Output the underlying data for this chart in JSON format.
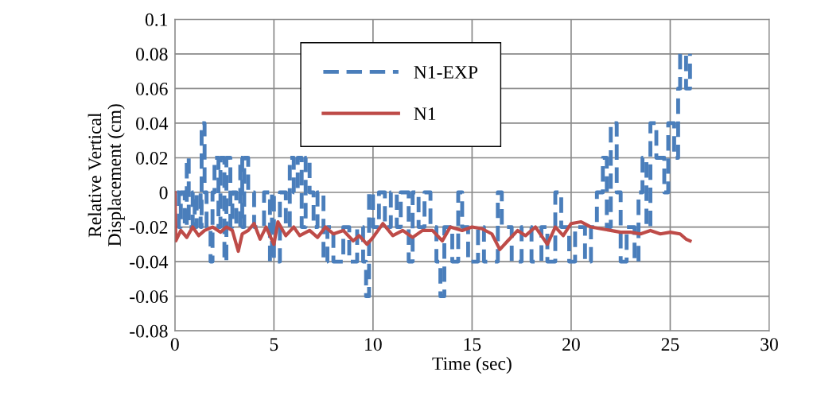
{
  "chart_data": {
    "type": "line",
    "xlabel": "Time (sec)",
    "ylabel": "Relative Vertical\nDisplacement (cm)",
    "xlim": [
      0,
      30
    ],
    "xticks": [
      0,
      5,
      10,
      15,
      20,
      25,
      30
    ],
    "ylim": [
      -0.08,
      0.1
    ],
    "yticks": [
      -0.08,
      -0.06,
      -0.04,
      -0.02,
      0,
      0.02,
      0.04,
      0.06,
      0.08,
      0.1
    ],
    "grid": true,
    "legend": "top",
    "series": [
      {
        "name": "N1-EXP",
        "type": "step",
        "color": "#4a7ebb",
        "line_style": "dashed",
        "x": [
          0.1,
          0.2,
          0.3,
          0.5,
          0.6,
          0.7,
          0.9,
          1.0,
          1.1,
          1.3,
          1.35,
          1.5,
          1.6,
          1.8,
          1.9,
          2.0,
          2.2,
          2.3,
          2.5,
          2.6,
          2.8,
          2.9,
          3.1,
          3.3,
          3.4,
          3.5,
          3.7,
          4.0,
          4.5,
          4.8,
          4.9,
          5.0,
          5.3,
          5.6,
          5.8,
          6.0,
          6.2,
          6.4,
          6.6,
          6.8,
          7.0,
          7.2,
          7.5,
          7.7,
          8.0,
          8.5,
          8.8,
          9.2,
          9.5,
          9.65,
          9.8,
          10.0,
          10.3,
          10.6,
          10.9,
          11.2,
          11.4,
          11.8,
          12.0,
          12.3,
          12.6,
          12.9,
          13.2,
          13.4,
          13.6,
          14.0,
          14.3,
          14.5,
          14.8,
          15.3,
          15.6,
          16.3,
          16.5,
          17.0,
          17.5,
          18.0,
          18.5,
          18.8,
          19.2,
          19.5,
          19.9,
          20.2,
          20.7,
          21.0,
          21.3,
          21.6,
          21.8,
          22.0,
          22.3,
          22.5,
          22.8,
          23.2,
          23.4,
          23.6,
          23.8,
          24.0,
          24.3,
          24.7,
          24.9,
          25.2,
          25.4,
          25.5,
          25.8,
          26.0
        ],
        "values": [
          0,
          -0.02,
          0,
          -0.02,
          0.02,
          -0.02,
          0,
          -0.02,
          0,
          -0.02,
          0.04,
          0,
          -0.02,
          -0.04,
          0,
          0.02,
          -0.02,
          0.02,
          -0.04,
          0.02,
          -0.02,
          0,
          -0.02,
          0.02,
          -0.02,
          0.02,
          0,
          -0.02,
          0,
          -0.04,
          0,
          -0.04,
          0,
          -0.02,
          0.02,
          0,
          0.02,
          -0.02,
          0.02,
          0,
          -0.02,
          0,
          -0.04,
          -0.02,
          -0.04,
          -0.02,
          -0.04,
          -0.02,
          -0.04,
          -0.06,
          0,
          -0.02,
          0,
          -0.02,
          0,
          -0.02,
          0,
          -0.04,
          0,
          -0.02,
          0,
          -0.02,
          -0.04,
          -0.06,
          -0.02,
          -0.04,
          0,
          -0.02,
          -0.04,
          -0.02,
          -0.04,
          0,
          -0.02,
          -0.04,
          -0.02,
          -0.04,
          -0.02,
          -0.04,
          0,
          -0.02,
          -0.04,
          -0.02,
          -0.04,
          -0.02,
          0,
          0.02,
          -0.02,
          0.04,
          0,
          -0.04,
          -0.02,
          -0.04,
          0,
          0.02,
          -0.02,
          0.04,
          0.02,
          0,
          0.04,
          0.02,
          0.06,
          0.08,
          0.06,
          0.08
        ]
      },
      {
        "name": "N1",
        "color": "#be4b48",
        "line_style": "solid",
        "x": [
          0,
          0.05,
          0.3,
          0.6,
          0.9,
          1.2,
          1.5,
          1.9,
          2.3,
          2.6,
          2.9,
          3.2,
          3.4,
          3.7,
          4.0,
          4.3,
          4.6,
          5.0,
          5.2,
          5.6,
          6.0,
          6.3,
          6.8,
          7.2,
          7.6,
          8.0,
          8.5,
          9.0,
          9.3,
          9.7,
          10.0,
          10.5,
          11.0,
          11.5,
          12.0,
          12.5,
          13.0,
          13.5,
          13.9,
          14.5,
          15.0,
          15.5,
          16.0,
          16.4,
          16.8,
          17.3,
          17.7,
          18.2,
          18.8,
          19.2,
          19.6,
          20.0,
          20.5,
          21.0,
          21.5,
          22.0,
          22.5,
          23.0,
          23.5,
          24.0,
          24.5,
          25.0,
          25.5,
          25.8,
          26.0
        ],
        "values": [
          0,
          -0.028,
          -0.022,
          -0.026,
          -0.02,
          -0.025,
          -0.022,
          -0.02,
          -0.023,
          -0.02,
          -0.022,
          -0.034,
          -0.024,
          -0.022,
          -0.018,
          -0.027,
          -0.02,
          -0.03,
          -0.017,
          -0.025,
          -0.02,
          -0.025,
          -0.022,
          -0.026,
          -0.02,
          -0.024,
          -0.022,
          -0.028,
          -0.025,
          -0.03,
          -0.026,
          -0.018,
          -0.025,
          -0.022,
          -0.026,
          -0.022,
          -0.022,
          -0.028,
          -0.02,
          -0.022,
          -0.02,
          -0.021,
          -0.024,
          -0.033,
          -0.028,
          -0.022,
          -0.025,
          -0.02,
          -0.03,
          -0.02,
          -0.025,
          -0.018,
          -0.017,
          -0.02,
          -0.021,
          -0.022,
          -0.023,
          -0.023,
          -0.024,
          -0.022,
          -0.024,
          -0.023,
          -0.024,
          -0.027,
          -0.028
        ]
      }
    ]
  }
}
